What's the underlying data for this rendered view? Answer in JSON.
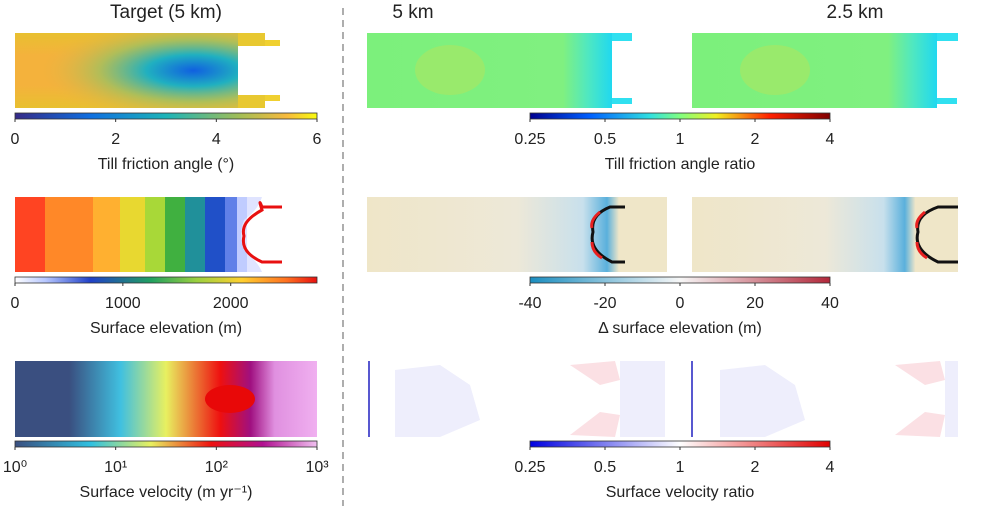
{
  "columns": [
    "Target (5 km)",
    "5 km",
    "2.5 km"
  ],
  "panels": [
    {
      "colorbar": {
        "label": "Till friction angle (°)",
        "lim": [
          0,
          6
        ],
        "ticks": [
          0,
          2,
          4,
          6
        ]
      },
      "right_colorbar": {
        "label": "Till friction angle ratio",
        "lim": [
          0.25,
          4
        ],
        "ticks": [
          0.25,
          0.5,
          1,
          2,
          4
        ],
        "log_scale": true
      }
    },
    {
      "colorbar": {
        "label": "Surface elevation (m)",
        "lim": [
          0,
          2800
        ],
        "ticks": [
          0,
          1000,
          2000
        ]
      },
      "right_colorbar": {
        "label": "Δ surface elevation (m)",
        "lim": [
          -40,
          40
        ],
        "ticks": [
          -40,
          -20,
          0,
          20,
          40
        ]
      }
    },
    {
      "colorbar": {
        "label": "Surface velocity (m yr⁻¹)",
        "lim": [
          1,
          1000
        ],
        "log_scale": true,
        "ticks": [
          {
            "value": 1,
            "label": "10⁰"
          },
          {
            "value": 10,
            "label": "10¹"
          },
          {
            "value": 100,
            "label": "10²"
          },
          {
            "value": 1000,
            "label": "10³"
          }
        ]
      },
      "right_colorbar": {
        "label": "Surface velocity ratio",
        "lim": [
          0.25,
          4
        ],
        "ticks": [
          0.25,
          0.5,
          1,
          2,
          4
        ],
        "log_scale": true
      }
    }
  ]
}
